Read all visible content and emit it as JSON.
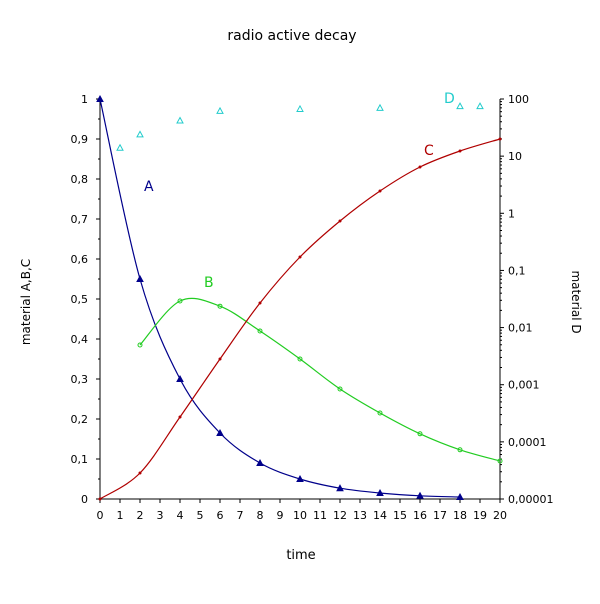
{
  "chart_data": {
    "type": "line",
    "title": "radio active decay",
    "xlabel": "time",
    "ylabel_left": "material A,B,C",
    "ylabel_right": "material D",
    "xlim": [
      0,
      20
    ],
    "ylim_left": [
      0,
      1
    ],
    "ylim_right": [
      1e-05,
      100
    ],
    "right_axis_scale": "log",
    "grid": false,
    "x_tick_labels": [
      "0",
      "1",
      "2",
      "3",
      "4",
      "5",
      "6",
      "7",
      "8",
      "9",
      "10",
      "11",
      "12",
      "13",
      "14",
      "15",
      "16",
      "17",
      "18",
      "19",
      "20"
    ],
    "y_left_tick_labels": [
      "0",
      "0,1",
      "0,2",
      "0,3",
      "0,4",
      "0,5",
      "0,6",
      "0,7",
      "0,8",
      "0,9",
      "1"
    ],
    "y_right_tick_labels": [
      "0,00001",
      "0,0001",
      "0,001",
      "0,01",
      "0,1",
      "1",
      "10",
      "100"
    ],
    "series": [
      {
        "name": "A",
        "axis": "left",
        "color": "#00008b",
        "marker": "triangle",
        "x": [
          0,
          2,
          4,
          6,
          8,
          10,
          12,
          14,
          16,
          18
        ],
        "y": [
          1.0,
          0.55,
          0.3,
          0.165,
          0.09,
          0.05,
          0.027,
          0.015,
          0.008,
          0.005
        ]
      },
      {
        "name": "B",
        "axis": "left",
        "color": "#22cc22",
        "marker": "circle",
        "x": [
          2,
          4,
          6,
          8,
          10,
          12,
          14,
          16,
          18,
          20
        ],
        "y": [
          0.385,
          0.495,
          0.482,
          0.42,
          0.35,
          0.275,
          0.215,
          0.163,
          0.123,
          0.095
        ]
      },
      {
        "name": "C",
        "axis": "left",
        "color": "#b00000",
        "marker": "dot",
        "x": [
          0,
          2,
          4,
          6,
          8,
          10,
          12,
          14,
          16,
          18,
          20
        ],
        "y": [
          0.0,
          0.065,
          0.205,
          0.35,
          0.49,
          0.605,
          0.695,
          0.77,
          0.83,
          0.87,
          0.9
        ]
      },
      {
        "name": "D",
        "axis": "right",
        "color": "#22cccc",
        "marker": "triangle",
        "x": [
          1,
          2,
          4,
          6,
          10,
          14,
          18,
          19
        ],
        "y": [
          14,
          24,
          42,
          62,
          67,
          70,
          75,
          75
        ]
      }
    ]
  }
}
